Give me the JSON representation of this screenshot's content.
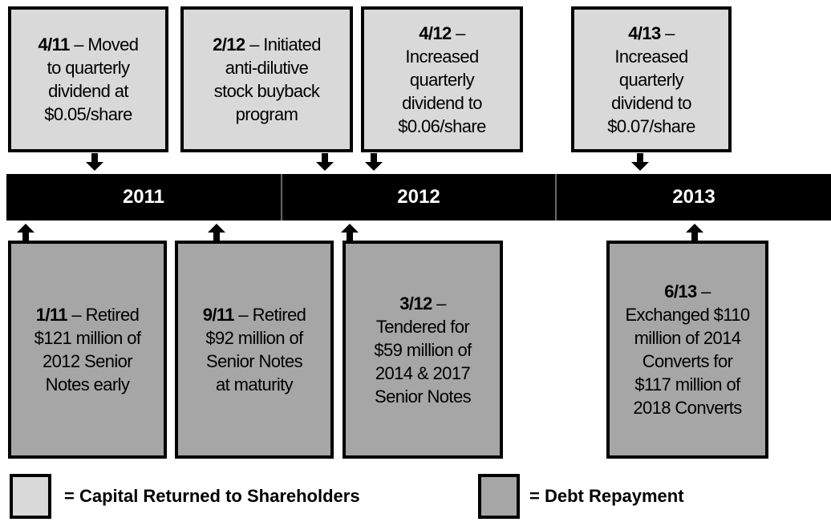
{
  "timeline": {
    "years": [
      "2011",
      "2012",
      "2013"
    ]
  },
  "top_events": [
    {
      "date": "4/11",
      "lines": [
        "– Moved",
        "to quarterly",
        "dividend at",
        "$0.05/share"
      ]
    },
    {
      "date": "2/12",
      "lines": [
        "– Initiated",
        "anti-dilutive",
        "stock buyback",
        "program"
      ]
    },
    {
      "date": "4/12",
      "lines": [
        "–",
        "Increased",
        "quarterly",
        "dividend to",
        "$0.06/share"
      ]
    },
    {
      "date": "4/13",
      "lines": [
        "–",
        "Increased",
        "quarterly",
        "dividend to",
        "$0.07/share"
      ]
    }
  ],
  "bottom_events": [
    {
      "date": "1/11",
      "lines": [
        "– Retired",
        "$121 million of",
        "2012 Senior",
        "Notes early"
      ]
    },
    {
      "date": "9/11",
      "lines": [
        "– Retired",
        "$92 million of",
        "Senior Notes",
        "at maturity"
      ]
    },
    {
      "date": "3/12",
      "lines": [
        "–",
        "Tendered for",
        "$59 million of",
        "2014 & 2017",
        "Senior Notes"
      ]
    },
    {
      "date": "6/13",
      "lines": [
        "–",
        "Exchanged $110",
        "million of 2014",
        "Converts for",
        "$117 million of",
        "2018 Converts"
      ]
    }
  ],
  "legend": [
    {
      "label": "= Capital Returned to Shareholders"
    },
    {
      "label": "= Debt Repayment"
    }
  ]
}
